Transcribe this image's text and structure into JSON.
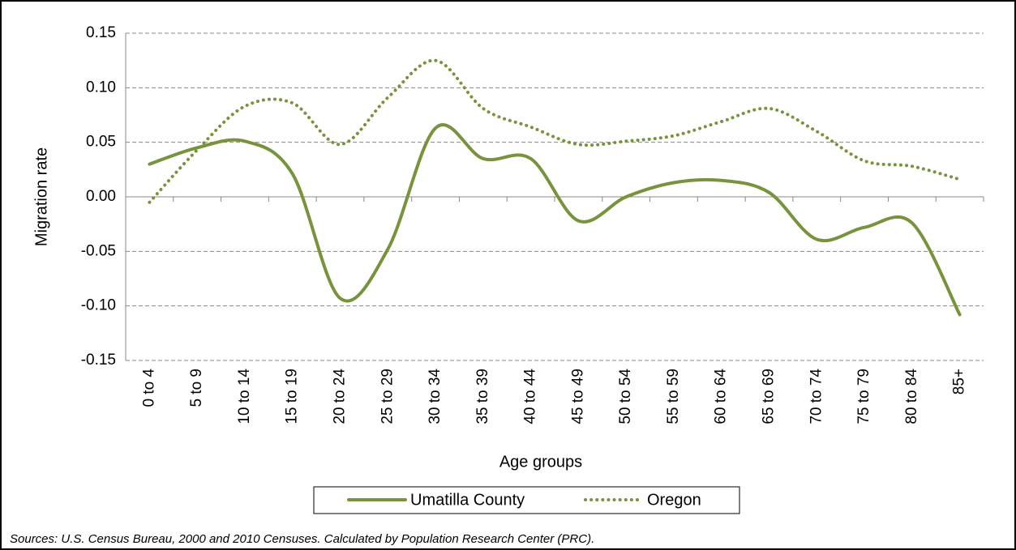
{
  "chart_data": {
    "type": "line",
    "y_axis_label": "Migration rate",
    "x_axis_label": "Age groups",
    "source": "Sources: U.S. Census Bureau, 2000 and 2010 Censuses. Calculated by Population Research  Center (PRC).",
    "categories": [
      "0 to 4",
      "5 to 9",
      "10 to 14",
      "15 to 19",
      "20 to 24",
      "25 to 29",
      "30 to 34",
      "35 to 39",
      "40 to 44",
      "45 to 49",
      "50 to 54",
      "55 to 59",
      "60 to 64",
      "65 to 69",
      "70 to 74",
      "75 to 79",
      "80 to 84",
      "85+"
    ],
    "series": [
      {
        "name": "Umatilla County",
        "color": "#77933c",
        "line_style": "solid",
        "values": [
          0.03,
          0.045,
          0.051,
          0.021,
          -0.093,
          -0.048,
          0.063,
          0.035,
          0.035,
          -0.022,
          0.0,
          0.013,
          0.015,
          0.004,
          -0.039,
          -0.028,
          -0.024,
          -0.108
        ]
      },
      {
        "name": "Oregon",
        "color": "#77933c",
        "line_style": "dotted",
        "values": [
          -0.005,
          0.043,
          0.083,
          0.086,
          0.048,
          0.091,
          0.125,
          0.081,
          0.064,
          0.048,
          0.051,
          0.056,
          0.069,
          0.081,
          0.06,
          0.033,
          0.028,
          0.016
        ]
      }
    ],
    "ylim": [
      -0.15,
      0.15
    ],
    "yticks": [
      -0.15,
      {
        "value": -0.1,
        "label": "-0.10"
      },
      -0.05,
      {
        "value": 0,
        "label": "0.00"
      },
      0.05,
      {
        "value": 0.1,
        "label": "0.10"
      },
      0.15
    ],
    "grid": true,
    "legend": "bottom"
  }
}
